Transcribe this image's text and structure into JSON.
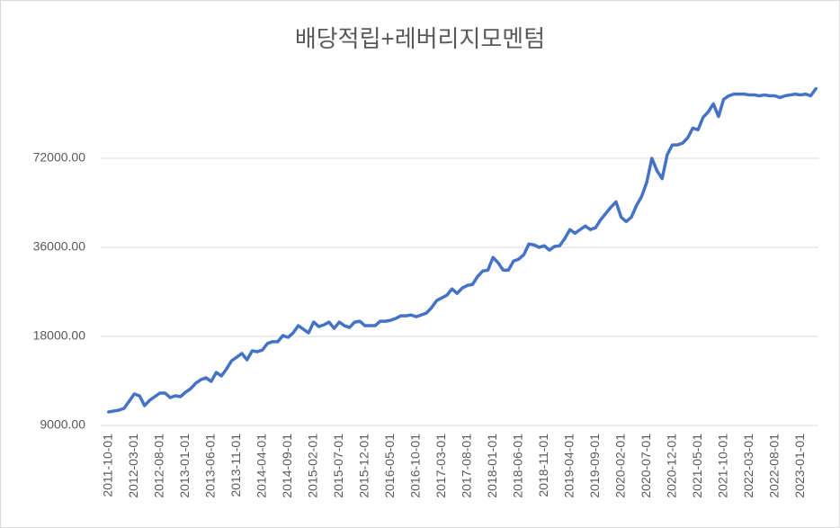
{
  "chart_data": {
    "type": "line",
    "title": "배당적립+레버리지모멘텀",
    "categories": [
      "2011-10-01",
      null,
      null,
      null,
      null,
      "2012-03-01",
      null,
      null,
      null,
      null,
      "2012-08-01",
      null,
      null,
      null,
      null,
      "2013-01-01",
      null,
      null,
      null,
      null,
      "2013-06-01",
      null,
      null,
      null,
      null,
      "2013-11-01",
      null,
      null,
      null,
      null,
      "2014-04-01",
      null,
      null,
      null,
      null,
      "2014-09-01",
      null,
      null,
      null,
      null,
      "2015-02-01",
      null,
      null,
      null,
      null,
      "2015-07-01",
      null,
      null,
      null,
      null,
      "2015-12-01",
      null,
      null,
      null,
      null,
      "2016-05-01",
      null,
      null,
      null,
      null,
      "2016-10-01",
      null,
      null,
      null,
      null,
      "2017-03-01",
      null,
      null,
      null,
      null,
      "2017-08-01",
      null,
      null,
      null,
      null,
      "2018-01-01",
      null,
      null,
      null,
      null,
      "2018-06-01",
      null,
      null,
      null,
      null,
      "2018-11-01",
      null,
      null,
      null,
      null,
      "2019-04-01",
      null,
      null,
      null,
      null,
      "2019-09-01",
      null,
      null,
      null,
      null,
      "2020-02-01",
      null,
      null,
      null,
      null,
      "2020-07-01",
      null,
      null,
      null,
      null,
      "2020-12-01",
      null,
      null,
      null,
      null,
      "2021-05-01",
      null,
      null,
      null,
      null,
      "2021-10-01",
      null,
      null,
      null,
      null,
      "2022-03-01",
      null,
      null,
      null,
      null,
      "2022-08-01",
      null,
      null,
      null,
      null,
      "2023-01-01",
      null,
      null,
      null
    ],
    "series": [
      {
        "color": "#4472c4",
        "values": [
          10000,
          10070,
          10140,
          10280,
          10870,
          11500,
          11340,
          10500,
          10950,
          11260,
          11580,
          11580,
          11180,
          11340,
          11260,
          11660,
          11990,
          12510,
          12860,
          13040,
          12680,
          13600,
          13230,
          13980,
          14900,
          15320,
          15760,
          15000,
          16090,
          15980,
          16200,
          17040,
          17280,
          17280,
          18130,
          17870,
          18510,
          19570,
          19030,
          18510,
          20120,
          19430,
          19700,
          20120,
          19160,
          20120,
          19570,
          19300,
          20120,
          20260,
          19570,
          19570,
          19570,
          20260,
          20260,
          20400,
          20690,
          21130,
          21130,
          21280,
          20980,
          21280,
          21580,
          22500,
          23790,
          24290,
          24810,
          26040,
          25160,
          26230,
          26780,
          26970,
          28710,
          29940,
          30150,
          33280,
          31910,
          30150,
          30150,
          32360,
          32820,
          33980,
          36960,
          36700,
          36000,
          36450,
          35250,
          36250,
          36450,
          38550,
          41340,
          40190,
          41340,
          42510,
          41340,
          41920,
          44620,
          46850,
          49190,
          51290,
          45550,
          44000,
          45550,
          49880,
          53470,
          59760,
          72000,
          65380,
          61440,
          74050,
          79920,
          79920,
          81040,
          84490,
          91120,
          89850,
          99090,
          103300,
          110000,
          99720,
          113900,
          117100,
          118700,
          118700,
          118700,
          117900,
          117900,
          117100,
          117900,
          117100,
          117100,
          115500,
          117100,
          117900,
          118700,
          117900,
          118700,
          117100,
          123800
        ]
      }
    ],
    "ylim": [
      9000,
      144000
    ],
    "log_scale": true,
    "yticks": [
      {
        "value": 9000,
        "label": "9000.00"
      },
      {
        "value": 18000,
        "label": "18000.00"
      },
      {
        "value": 36000,
        "label": "36000.00"
      },
      {
        "value": 72000,
        "label": "72000.00"
      }
    ],
    "grid": true
  }
}
